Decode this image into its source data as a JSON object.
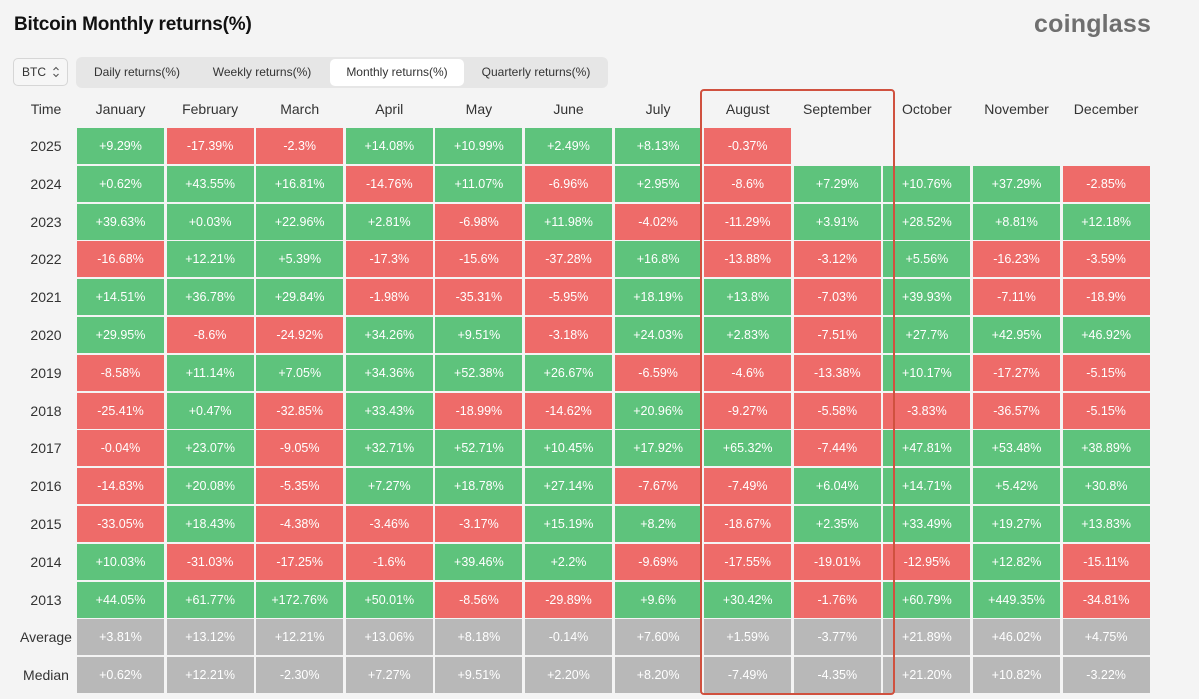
{
  "title": "Bitcoin Monthly returns(%)",
  "brand": "coinglass",
  "asset_select": {
    "value": "BTC"
  },
  "tabs": [
    {
      "label": "Daily returns(%)",
      "active": false
    },
    {
      "label": "Weekly returns(%)",
      "active": false
    },
    {
      "label": "Monthly returns(%)",
      "active": true
    },
    {
      "label": "Quarterly returns(%)",
      "active": false
    }
  ],
  "colors": {
    "positive": "#5ec37c",
    "negative": "#ee6b69",
    "summary": "#b8b8b8",
    "highlight": "#d0513f"
  },
  "chart_data": {
    "type": "heatmap",
    "corner_label": "Time",
    "columns": [
      "January",
      "February",
      "March",
      "April",
      "May",
      "June",
      "July",
      "August",
      "September",
      "October",
      "November",
      "December"
    ],
    "rows": [
      {
        "label": "2025",
        "values": [
          "+9.29%",
          "-17.39%",
          "-2.3%",
          "+14.08%",
          "+10.99%",
          "+2.49%",
          "+8.13%",
          "-0.37%",
          null,
          null,
          null,
          null
        ]
      },
      {
        "label": "2024",
        "values": [
          "+0.62%",
          "+43.55%",
          "+16.81%",
          "-14.76%",
          "+11.07%",
          "-6.96%",
          "+2.95%",
          "-8.6%",
          "+7.29%",
          "+10.76%",
          "+37.29%",
          "-2.85%"
        ]
      },
      {
        "label": "2023",
        "values": [
          "+39.63%",
          "+0.03%",
          "+22.96%",
          "+2.81%",
          "-6.98%",
          "+11.98%",
          "-4.02%",
          "-11.29%",
          "+3.91%",
          "+28.52%",
          "+8.81%",
          "+12.18%"
        ]
      },
      {
        "label": "2022",
        "values": [
          "-16.68%",
          "+12.21%",
          "+5.39%",
          "-17.3%",
          "-15.6%",
          "-37.28%",
          "+16.8%",
          "-13.88%",
          "-3.12%",
          "+5.56%",
          "-16.23%",
          "-3.59%"
        ]
      },
      {
        "label": "2021",
        "values": [
          "+14.51%",
          "+36.78%",
          "+29.84%",
          "-1.98%",
          "-35.31%",
          "-5.95%",
          "+18.19%",
          "+13.8%",
          "-7.03%",
          "+39.93%",
          "-7.11%",
          "-18.9%"
        ]
      },
      {
        "label": "2020",
        "values": [
          "+29.95%",
          "-8.6%",
          "-24.92%",
          "+34.26%",
          "+9.51%",
          "-3.18%",
          "+24.03%",
          "+2.83%",
          "-7.51%",
          "+27.7%",
          "+42.95%",
          "+46.92%"
        ]
      },
      {
        "label": "2019",
        "values": [
          "-8.58%",
          "+11.14%",
          "+7.05%",
          "+34.36%",
          "+52.38%",
          "+26.67%",
          "-6.59%",
          "-4.6%",
          "-13.38%",
          "+10.17%",
          "-17.27%",
          "-5.15%"
        ]
      },
      {
        "label": "2018",
        "values": [
          "-25.41%",
          "+0.47%",
          "-32.85%",
          "+33.43%",
          "-18.99%",
          "-14.62%",
          "+20.96%",
          "-9.27%",
          "-5.58%",
          "-3.83%",
          "-36.57%",
          "-5.15%"
        ]
      },
      {
        "label": "2017",
        "values": [
          "-0.04%",
          "+23.07%",
          "-9.05%",
          "+32.71%",
          "+52.71%",
          "+10.45%",
          "+17.92%",
          "+65.32%",
          "-7.44%",
          "+47.81%",
          "+53.48%",
          "+38.89%"
        ]
      },
      {
        "label": "2016",
        "values": [
          "-14.83%",
          "+20.08%",
          "-5.35%",
          "+7.27%",
          "+18.78%",
          "+27.14%",
          "-7.67%",
          "-7.49%",
          "+6.04%",
          "+14.71%",
          "+5.42%",
          "+30.8%"
        ]
      },
      {
        "label": "2015",
        "values": [
          "-33.05%",
          "+18.43%",
          "-4.38%",
          "-3.46%",
          "-3.17%",
          "+15.19%",
          "+8.2%",
          "-18.67%",
          "+2.35%",
          "+33.49%",
          "+19.27%",
          "+13.83%"
        ]
      },
      {
        "label": "2014",
        "values": [
          "+10.03%",
          "-31.03%",
          "-17.25%",
          "-1.6%",
          "+39.46%",
          "+2.2%",
          "-9.69%",
          "-17.55%",
          "-19.01%",
          "-12.95%",
          "+12.82%",
          "-15.11%"
        ]
      },
      {
        "label": "2013",
        "values": [
          "+44.05%",
          "+61.77%",
          "+172.76%",
          "+50.01%",
          "-8.56%",
          "-29.89%",
          "+9.6%",
          "+30.42%",
          "-1.76%",
          "+60.79%",
          "+449.35%",
          "-34.81%"
        ]
      }
    ],
    "summary_rows": [
      {
        "label": "Average",
        "values": [
          "+3.81%",
          "+13.12%",
          "+12.21%",
          "+13.06%",
          "+8.18%",
          "-0.14%",
          "+7.60%",
          "+1.59%",
          "-3.77%",
          "+21.89%",
          "+46.02%",
          "+4.75%"
        ]
      },
      {
        "label": "Median",
        "values": [
          "+0.62%",
          "+12.21%",
          "-2.30%",
          "+7.27%",
          "+9.51%",
          "+2.20%",
          "+8.20%",
          "-7.49%",
          "-4.35%",
          "+21.20%",
          "+10.82%",
          "-3.22%"
        ]
      }
    ],
    "highlighted_columns": [
      "August",
      "September"
    ]
  }
}
